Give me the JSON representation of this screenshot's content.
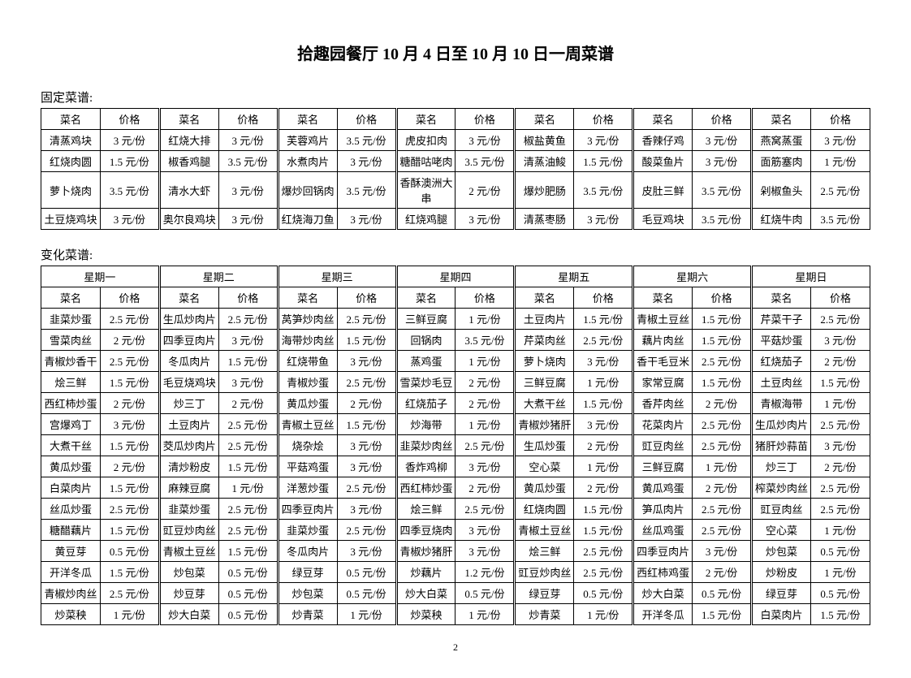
{
  "title": "拾趣园餐厅 10 月 4 日至 10 月 10 日一周菜谱",
  "fixed_heading": "固定菜谱:",
  "variable_heading": "变化菜谱:",
  "col_name": "菜名",
  "col_price": "价格",
  "fixed_rows": [
    [
      "清蒸鸡块",
      "3 元/份",
      "红烧大排",
      "3 元/份",
      "芙蓉鸡片",
      "3.5 元/份",
      "虎皮扣肉",
      "3 元/份",
      "椒盐黄鱼",
      "3 元/份",
      "香辣仔鸡",
      "3 元/份",
      "燕窝蒸蛋",
      "3 元/份"
    ],
    [
      "红烧肉圆",
      "1.5 元/份",
      "椒香鸡腿",
      "3.5 元/份",
      "水煮肉片",
      "3 元/份",
      "糖醋咕咾肉",
      "3.5 元/份",
      "清蒸油鮻",
      "1.5 元/份",
      "酸菜鱼片",
      "3 元/份",
      "面筋塞肉",
      "1 元/份"
    ],
    [
      "萝卜烧肉",
      "3.5 元/份",
      "清水大虾",
      "3 元/份",
      "爆炒回锅肉",
      "3.5 元/份",
      "香酥澳洲大串",
      "2 元/份",
      "爆炒肥肠",
      "3.5 元/份",
      "皮肚三鲜",
      "3.5 元/份",
      "剁椒鱼头",
      "2.5 元/份"
    ],
    [
      "土豆烧鸡块",
      "3 元/份",
      "奥尔良鸡块",
      "3 元/份",
      "红烧海刀鱼",
      "3 元/份",
      "红烧鸡腿",
      "3 元/份",
      "清蒸枣肠",
      "3 元/份",
      "毛豆鸡块",
      "3.5 元/份",
      "红烧牛肉",
      "3.5 元/份"
    ]
  ],
  "days": [
    "星期一",
    "星期二",
    "星期三",
    "星期四",
    "星期五",
    "星期六",
    "星期日"
  ],
  "var_rows": [
    [
      "韭菜炒蛋",
      "2.5 元/份",
      "生瓜炒肉片",
      "2.5 元/份",
      "莴笋炒肉丝",
      "2.5 元/份",
      "三鲜豆腐",
      "1 元/份",
      "土豆肉片",
      "1.5 元/份",
      "青椒土豆丝",
      "1.5 元/份",
      "芹菜干子",
      "2.5 元/份"
    ],
    [
      "雪菜肉丝",
      "2 元/份",
      "四季豆肉片",
      "3 元/份",
      "海带炒肉丝",
      "1.5 元/份",
      "回锅肉",
      "3.5 元/份",
      "芹菜肉丝",
      "2.5 元/份",
      "藕片肉丝",
      "1.5 元/份",
      "平菇炒蛋",
      "3 元/份"
    ],
    [
      "青椒炒香干",
      "2.5 元/份",
      "冬瓜肉片",
      "1.5 元/份",
      "红烧带鱼",
      "3 元/份",
      "蒸鸡蛋",
      "1 元/份",
      "萝卜烧肉",
      "3 元/份",
      "香干毛豆米",
      "2.5 元/份",
      "红烧茄子",
      "2 元/份"
    ],
    [
      "烩三鲜",
      "1.5 元/份",
      "毛豆烧鸡块",
      "3 元/份",
      "青椒炒蛋",
      "2.5 元/份",
      "雪菜炒毛豆",
      "2 元/份",
      "三鲜豆腐",
      "1 元/份",
      "家常豆腐",
      "1.5 元/份",
      "土豆肉丝",
      "1.5 元/份"
    ],
    [
      "西红柿炒蛋",
      "2 元/份",
      "炒三丁",
      "2 元/份",
      "黄瓜炒蛋",
      "2 元/份",
      "红烧茄子",
      "2 元/份",
      "大煮干丝",
      "1.5 元/份",
      "香芹肉丝",
      "2 元/份",
      "青椒海带",
      "1 元/份"
    ],
    [
      "宫爆鸡丁",
      "3 元/份",
      "土豆肉片",
      "2.5 元/份",
      "青椒土豆丝",
      "1.5 元/份",
      "炒海带",
      "1 元/份",
      "青椒炒猪肝",
      "3 元/份",
      "花菜肉片",
      "2.5 元/份",
      "生瓜炒肉片",
      "2.5 元/份"
    ],
    [
      "大煮干丝",
      "1.5 元/份",
      "茭瓜炒肉片",
      "2.5 元/份",
      "烧杂烩",
      "3 元/份",
      "韭菜炒肉丝",
      "2.5 元/份",
      "生瓜炒蛋",
      "2 元/份",
      "豇豆肉丝",
      "2.5 元/份",
      "猪肝炒蒜苗",
      "3 元/份"
    ],
    [
      "黄瓜炒蛋",
      "2 元/份",
      "清炒粉皮",
      "1.5 元/份",
      "平菇鸡蛋",
      "3 元/份",
      "香炸鸡柳",
      "3 元/份",
      "空心菜",
      "1 元/份",
      "三鲜豆腐",
      "1 元/份",
      "炒三丁",
      "2 元/份"
    ],
    [
      "白菜肉片",
      "1.5 元/份",
      "麻辣豆腐",
      "1 元/份",
      "洋葱炒蛋",
      "2.5 元/份",
      "西红柿炒蛋",
      "2 元/份",
      "黄瓜炒蛋",
      "2 元/份",
      "黄瓜鸡蛋",
      "2 元/份",
      "榨菜炒肉丝",
      "2.5 元/份"
    ],
    [
      "丝瓜炒蛋",
      "2.5 元/份",
      "韭菜炒蛋",
      "2.5 元/份",
      "四季豆肉片",
      "3 元/份",
      "烩三鲜",
      "2.5 元/份",
      "红烧肉圆",
      "1.5 元/份",
      "笋瓜肉片",
      "2.5 元/份",
      "豇豆肉丝",
      "2.5 元/份"
    ],
    [
      "糖醋藕片",
      "1.5 元/份",
      "豇豆炒肉丝",
      "2.5 元/份",
      "韭菜炒蛋",
      "2.5 元/份",
      "四季豆烧肉",
      "3 元/份",
      "青椒土豆丝",
      "1.5 元/份",
      "丝瓜鸡蛋",
      "2.5 元/份",
      "空心菜",
      "1 元/份"
    ],
    [
      "黄豆芽",
      "0.5 元/份",
      "青椒土豆丝",
      "1.5 元/份",
      "冬瓜肉片",
      "3 元/份",
      "青椒炒猪肝",
      "3 元/份",
      "烩三鲜",
      "2.5 元/份",
      "四季豆肉片",
      "3 元/份",
      "炒包菜",
      "0.5 元/份"
    ],
    [
      "开洋冬瓜",
      "1.5 元/份",
      "炒包菜",
      "0.5 元/份",
      "绿豆芽",
      "0.5 元/份",
      "炒藕片",
      "1.2 元/份",
      "豇豆炒肉丝",
      "2.5 元/份",
      "西红柿鸡蛋",
      "2 元/份",
      "炒粉皮",
      "1 元/份"
    ],
    [
      "青椒炒肉丝",
      "2.5 元/份",
      "炒豆芽",
      "0.5 元/份",
      "炒包菜",
      "0.5 元/份",
      "炒大白菜",
      "0.5 元/份",
      "绿豆芽",
      "0.5 元/份",
      "炒大白菜",
      "0.5 元/份",
      "绿豆芽",
      "0.5 元/份"
    ],
    [
      "炒菜秧",
      "1 元/份",
      "炒大白菜",
      "0.5 元/份",
      "炒青菜",
      "1 元/份",
      "炒菜秧",
      "1 元/份",
      "炒青菜",
      "1 元/份",
      "开洋冬瓜",
      "1.5 元/份",
      "白菜肉片",
      "1.5 元/份"
    ]
  ],
  "page_number": "2"
}
